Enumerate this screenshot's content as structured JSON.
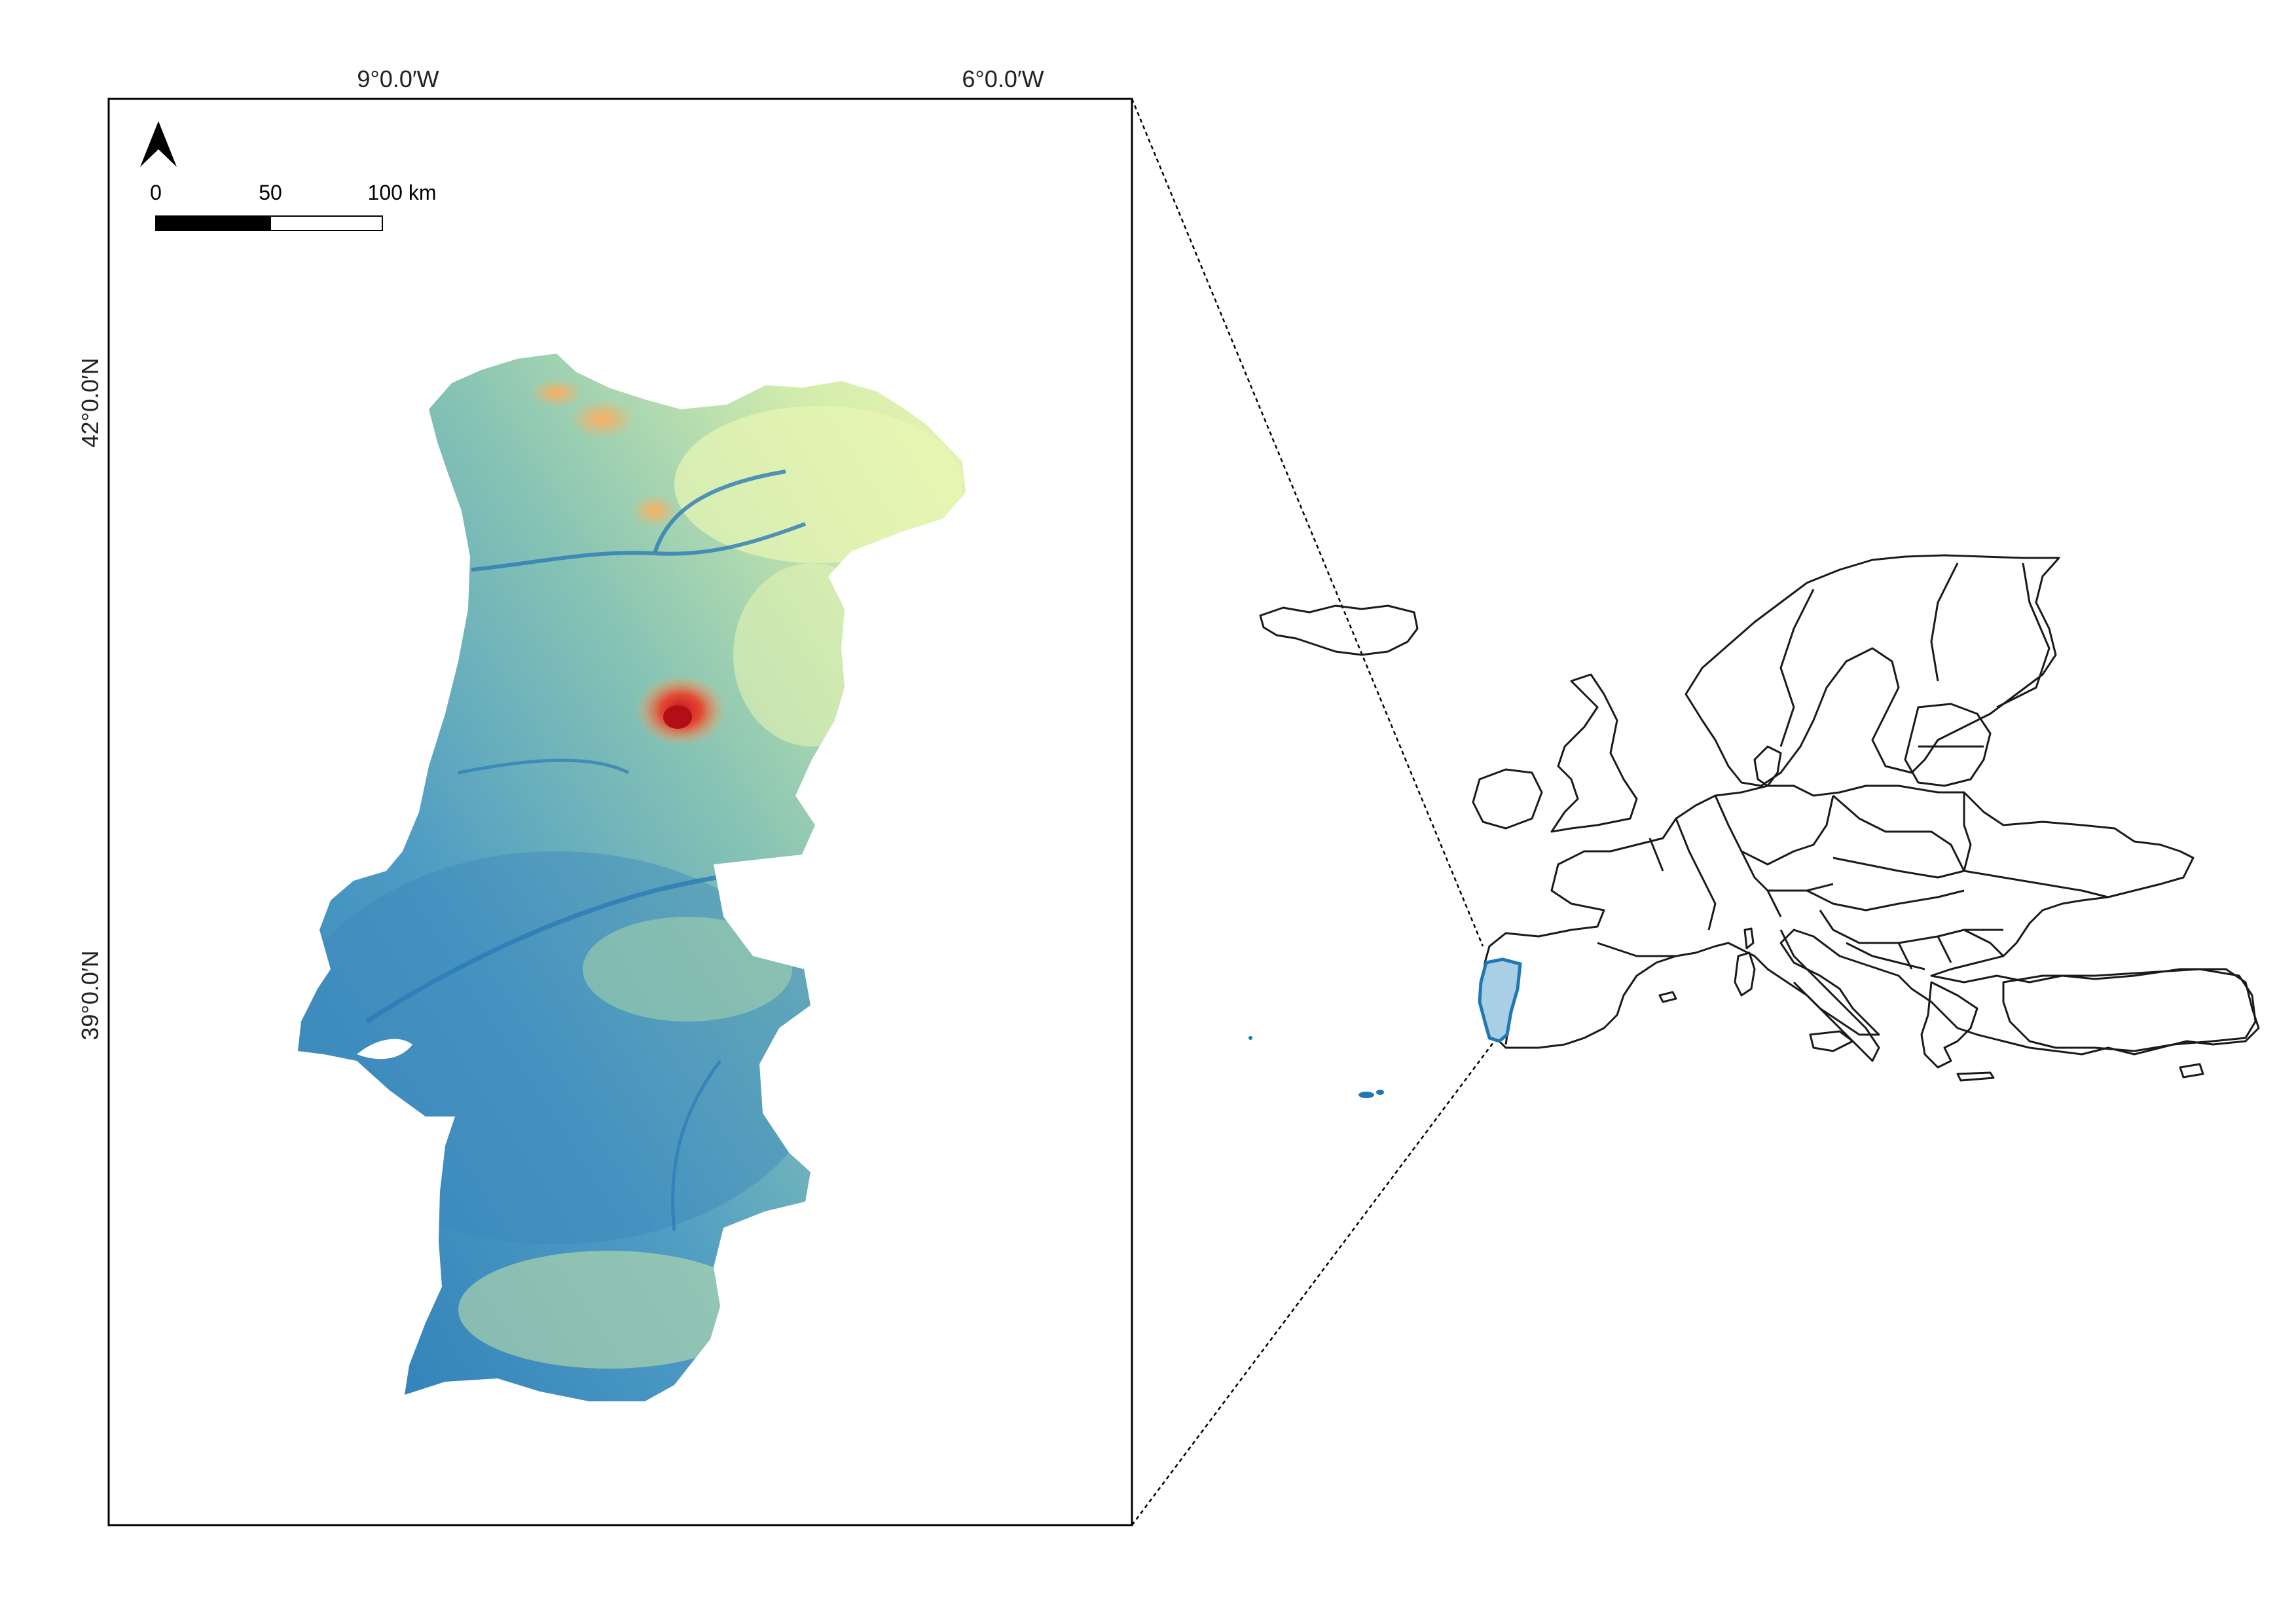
{
  "main_map": {
    "lon_labels": [
      "9°0.0′W",
      "6°0.0′W"
    ],
    "lat_labels": [
      "42°0.0′N",
      "39°0.0′N"
    ],
    "scale_bar": {
      "labels": [
        "0",
        "50",
        "100 km"
      ]
    },
    "elevation_colors": {
      "low": "#2c7bb6",
      "mid_low": "#5fa8c8",
      "mid": "#a6d7a4",
      "mid_high": "#e6f4ad",
      "high": "#fdae61",
      "peak": "#d7191c"
    }
  },
  "inset_map": {
    "outline_color": "#1a1a1a",
    "highlight_fill": "#a9cfe6",
    "highlight_stroke": "#1f78b4"
  },
  "icons": [
    "north-arrow-icon"
  ]
}
